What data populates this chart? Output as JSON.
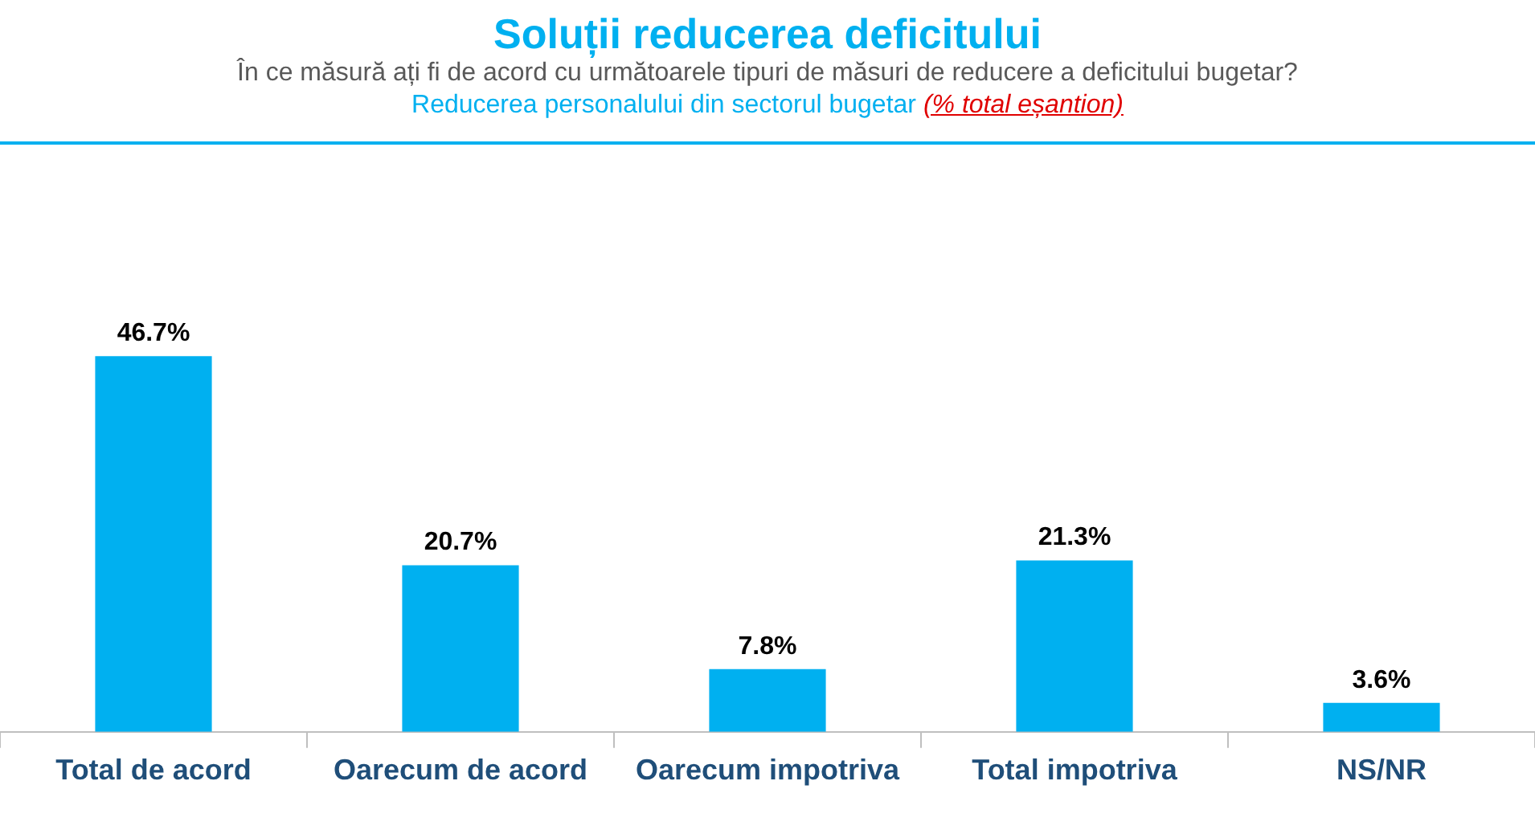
{
  "chart_data": {
    "type": "bar",
    "title": "Soluții reducerea deficitului",
    "subtitle": "În ce măsură ați fi de acord cu următoarele tipuri de măsuri de reducere a deficitului bugetar?",
    "annotations": [
      "Reducerea personalului din sectorul bugetar",
      "(% total eșantion)"
    ],
    "categories": [
      "Total de acord",
      "Oarecum de acord",
      "Oarecum impotriva",
      "Total impotriva",
      "NS/NR"
    ],
    "values": [
      46.7,
      20.7,
      7.8,
      21.3,
      3.6
    ],
    "value_labels": [
      "46.7%",
      "20.7%",
      "7.8%",
      "21.3%",
      "3.6%"
    ],
    "color": "#00b0f0",
    "grid": false,
    "legend": false
  }
}
